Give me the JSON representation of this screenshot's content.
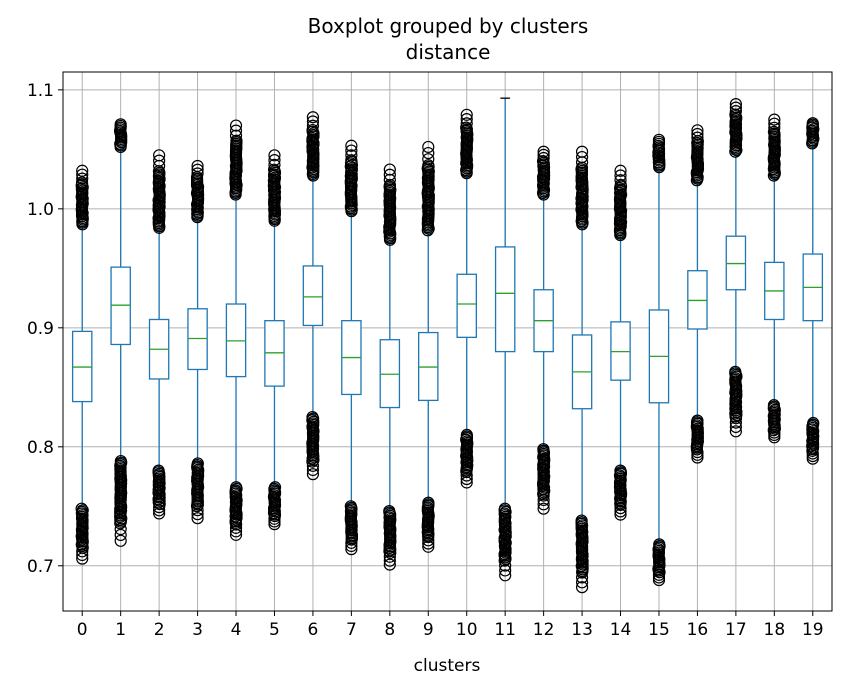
{
  "chart_data": {
    "type": "box",
    "title": "Boxplot grouped by clusters",
    "subtitle": "distance",
    "xlabel": "clusters",
    "ylabel": "",
    "grid": true,
    "ylim": [
      0.662,
      1.115
    ],
    "yticks": [
      "0.7",
      "0.8",
      "0.9",
      "1.0",
      "1.1"
    ],
    "categories": [
      "0",
      "1",
      "2",
      "3",
      "4",
      "5",
      "6",
      "7",
      "8",
      "9",
      "10",
      "11",
      "12",
      "13",
      "14",
      "15",
      "16",
      "17",
      "18",
      "19"
    ],
    "colors": {
      "box": "#1f77b4",
      "median": "#2ca02c",
      "flier": "#000000",
      "grid": "#b0b0b0"
    },
    "boxes": [
      {
        "cluster": "0",
        "whislo": 0.75,
        "q1": 0.838,
        "median": 0.867,
        "q3": 0.897,
        "whishi": 0.985,
        "fliers_low_top": 0.748,
        "fliers_low_min": 0.706,
        "fliers_high_min": 0.987,
        "fliers_high_max": 1.032
      },
      {
        "cluster": "1",
        "whislo": 0.79,
        "q1": 0.886,
        "median": 0.919,
        "q3": 0.951,
        "whishi": 1.05,
        "fliers_low_top": 0.788,
        "fliers_low_min": 0.721,
        "fliers_high_min": 1.052,
        "fliers_high_max": 1.071
      },
      {
        "cluster": "2",
        "whislo": 0.78,
        "q1": 0.857,
        "median": 0.882,
        "q3": 0.907,
        "whishi": 0.982,
        "fliers_low_top": 0.78,
        "fliers_low_min": 0.744,
        "fliers_high_min": 0.984,
        "fliers_high_max": 1.045
      },
      {
        "cluster": "3",
        "whislo": 0.787,
        "q1": 0.865,
        "median": 0.891,
        "q3": 0.916,
        "whishi": 0.992,
        "fliers_low_top": 0.786,
        "fliers_low_min": 0.74,
        "fliers_high_min": 0.993,
        "fliers_high_max": 1.036
      },
      {
        "cluster": "4",
        "whislo": 0.767,
        "q1": 0.859,
        "median": 0.889,
        "q3": 0.92,
        "whishi": 1.01,
        "fliers_low_top": 0.766,
        "fliers_low_min": 0.726,
        "fliers_high_min": 1.012,
        "fliers_high_max": 1.07
      },
      {
        "cluster": "5",
        "whislo": 0.767,
        "q1": 0.851,
        "median": 0.879,
        "q3": 0.906,
        "whishi": 0.988,
        "fliers_low_top": 0.766,
        "fliers_low_min": 0.735,
        "fliers_high_min": 0.99,
        "fliers_high_max": 1.045
      },
      {
        "cluster": "6",
        "whislo": 0.827,
        "q1": 0.902,
        "median": 0.926,
        "q3": 0.952,
        "whishi": 1.027,
        "fliers_low_top": 0.825,
        "fliers_low_min": 0.777,
        "fliers_high_min": 1.028,
        "fliers_high_max": 1.077
      },
      {
        "cluster": "7",
        "whislo": 0.752,
        "q1": 0.844,
        "median": 0.875,
        "q3": 0.906,
        "whishi": 0.996,
        "fliers_low_top": 0.75,
        "fliers_low_min": 0.714,
        "fliers_high_min": 0.998,
        "fliers_high_max": 1.053
      },
      {
        "cluster": "8",
        "whislo": 0.748,
        "q1": 0.833,
        "median": 0.861,
        "q3": 0.89,
        "whishi": 0.972,
        "fliers_low_top": 0.746,
        "fliers_low_min": 0.701,
        "fliers_high_min": 0.974,
        "fliers_high_max": 1.033
      },
      {
        "cluster": "9",
        "whislo": 0.755,
        "q1": 0.839,
        "median": 0.867,
        "q3": 0.896,
        "whishi": 0.98,
        "fliers_low_top": 0.753,
        "fliers_low_min": 0.716,
        "fliers_high_min": 0.982,
        "fliers_high_max": 1.052
      },
      {
        "cluster": "10",
        "whislo": 0.812,
        "q1": 0.892,
        "median": 0.92,
        "q3": 0.945,
        "whishi": 1.028,
        "fliers_low_top": 0.81,
        "fliers_low_min": 0.77,
        "fliers_high_min": 1.03,
        "fliers_high_max": 1.079
      },
      {
        "cluster": "11",
        "whislo": 0.75,
        "q1": 0.88,
        "median": 0.929,
        "q3": 0.968,
        "whishi": 1.093,
        "fliers_low_top": 0.748,
        "fliers_low_min": 0.692,
        "fliers_high_min": null,
        "fliers_high_max": null
      },
      {
        "cluster": "12",
        "whislo": 0.8,
        "q1": 0.88,
        "median": 0.906,
        "q3": 0.932,
        "whishi": 1.01,
        "fliers_low_top": 0.798,
        "fliers_low_min": 0.748,
        "fliers_high_min": 1.012,
        "fliers_high_max": 1.048
      },
      {
        "cluster": "13",
        "whislo": 0.74,
        "q1": 0.832,
        "median": 0.863,
        "q3": 0.894,
        "whishi": 0.985,
        "fliers_low_top": 0.738,
        "fliers_low_min": 0.682,
        "fliers_high_min": 0.987,
        "fliers_high_max": 1.048
      },
      {
        "cluster": "14",
        "whislo": 0.782,
        "q1": 0.856,
        "median": 0.88,
        "q3": 0.905,
        "whishi": 0.976,
        "fliers_low_top": 0.78,
        "fliers_low_min": 0.743,
        "fliers_high_min": 0.978,
        "fliers_high_max": 1.032
      },
      {
        "cluster": "15",
        "whislo": 0.72,
        "q1": 0.837,
        "median": 0.876,
        "q3": 0.915,
        "whishi": 1.033,
        "fliers_low_top": 0.718,
        "fliers_low_min": 0.688,
        "fliers_high_min": 1.035,
        "fliers_high_max": 1.058
      },
      {
        "cluster": "16",
        "whislo": 0.824,
        "q1": 0.899,
        "median": 0.923,
        "q3": 0.948,
        "whishi": 1.022,
        "fliers_low_top": 0.822,
        "fliers_low_min": 0.791,
        "fliers_high_min": 1.024,
        "fliers_high_max": 1.066
      },
      {
        "cluster": "17",
        "whislo": 0.865,
        "q1": 0.932,
        "median": 0.954,
        "q3": 0.977,
        "whishi": 1.046,
        "fliers_low_top": 0.863,
        "fliers_low_min": 0.813,
        "fliers_high_min": 1.048,
        "fliers_high_max": 1.088
      },
      {
        "cluster": "18",
        "whislo": 0.837,
        "q1": 0.907,
        "median": 0.931,
        "q3": 0.955,
        "whishi": 1.026,
        "fliers_low_top": 0.835,
        "fliers_low_min": 0.808,
        "fliers_high_min": 1.028,
        "fliers_high_max": 1.075
      },
      {
        "cluster": "19",
        "whislo": 0.822,
        "q1": 0.906,
        "median": 0.934,
        "q3": 0.962,
        "whishi": 1.053,
        "fliers_low_top": 0.82,
        "fliers_low_min": 0.79,
        "fliers_high_min": 1.055,
        "fliers_high_max": 1.072
      }
    ]
  }
}
